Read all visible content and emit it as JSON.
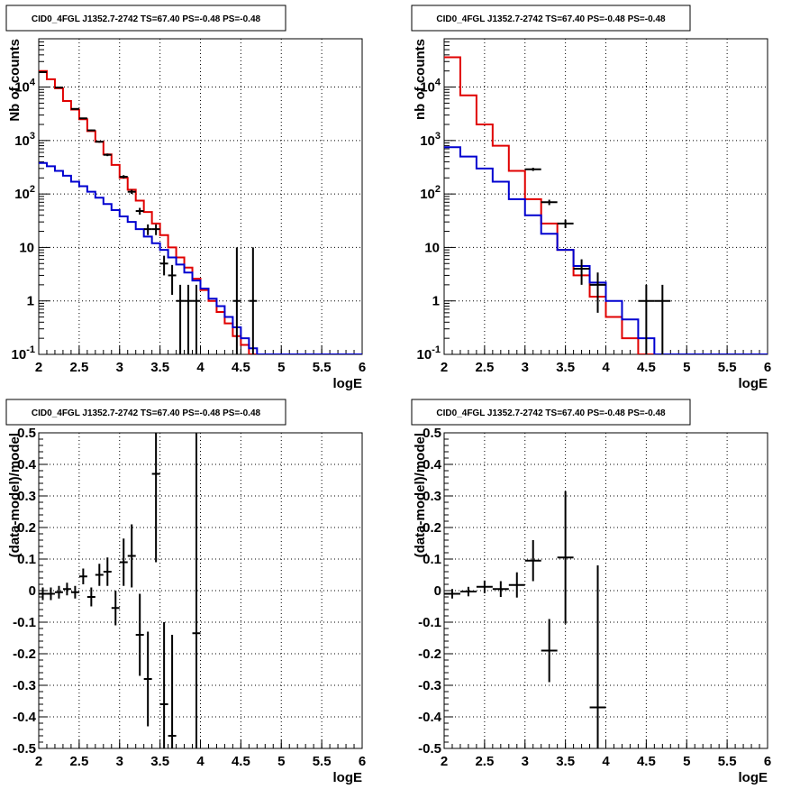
{
  "chart_data": [
    {
      "type": "line",
      "panel": "top-left",
      "title": "CID0_4FGL J1352.7-2742 TS=67.40 PS=-0.48 PS=-0.48",
      "xlabel": "logE",
      "ylabel": "Nb of counts",
      "xlim": [
        2,
        6
      ],
      "ylim": [
        0.1,
        80000
      ],
      "yscale": "log",
      "grid": true,
      "x_ticks": [
        "2",
        "2.5",
        "3",
        "3.5",
        "4",
        "4.5",
        "5",
        "5.5",
        "6"
      ],
      "y_ticks": [
        {
          "value": 0.1,
          "label": "10",
          "exp": "-1"
        },
        {
          "value": 1,
          "label": "1",
          "exp": ""
        },
        {
          "value": 10,
          "label": "10",
          "exp": ""
        },
        {
          "value": 100,
          "label": "10",
          "exp": "2"
        },
        {
          "value": 1000,
          "label": "10",
          "exp": "3"
        },
        {
          "value": 10000,
          "label": "10",
          "exp": "4"
        }
      ],
      "bin_edges": [
        2.0,
        2.1,
        2.2,
        2.3,
        2.4,
        2.5,
        2.6,
        2.7,
        2.8,
        2.9,
        3.0,
        3.1,
        3.2,
        3.3,
        3.4,
        3.5,
        3.6,
        3.7,
        3.8,
        3.9,
        4.0,
        4.1,
        4.2,
        4.3,
        4.4,
        4.5,
        4.6,
        4.7,
        4.8,
        4.9,
        5.0,
        5.1,
        5.2,
        5.3,
        5.4,
        5.5,
        5.6,
        5.7,
        5.8,
        5.9,
        6.0
      ],
      "series": [
        {
          "kind": "model-total",
          "color": "#e00000",
          "values": [
            20000,
            14000,
            9500,
            5500,
            3800,
            2500,
            1500,
            950,
            550,
            350,
            200,
            120,
            75,
            46,
            28,
            17,
            10,
            6.5,
            4.2,
            2.6,
            1.6,
            1.0,
            0.62,
            0.38,
            0.22,
            0.15,
            0.1,
            0.1,
            0.1,
            0.1,
            0.1,
            0.1,
            0.1,
            0.1,
            0.1,
            0.1,
            0.1,
            0.1,
            0.1,
            0.1
          ]
        },
        {
          "kind": "model-component",
          "color": "#0000d0",
          "values": [
            380,
            330,
            270,
            220,
            170,
            140,
            110,
            85,
            65,
            50,
            38,
            30,
            22,
            16,
            12,
            9,
            6.5,
            4.8,
            3.4,
            2.4,
            1.7,
            1.1,
            0.8,
            0.5,
            0.32,
            0.2,
            0.13,
            0.1,
            0.1,
            0.1,
            0.1,
            0.1,
            0.1,
            0.1,
            0.1,
            0.1,
            0.1,
            0.1,
            0.1,
            0.1
          ]
        },
        {
          "kind": "data",
          "color": "#000000",
          "points": [
            {
              "x": 2.05,
              "y": 19000,
              "lo": 18800,
              "hi": 19200
            },
            {
              "x": 2.25,
              "y": 9800,
              "lo": 9650,
              "hi": 9950
            },
            {
              "x": 2.45,
              "y": 3900,
              "lo": 3830,
              "hi": 3970
            },
            {
              "x": 2.55,
              "y": 2600,
              "lo": 2540,
              "hi": 2660
            },
            {
              "x": 2.65,
              "y": 1550,
              "lo": 1500,
              "hi": 1600
            },
            {
              "x": 2.75,
              "y": 950,
              "lo": 910,
              "hi": 990
            },
            {
              "x": 2.85,
              "y": 540,
              "lo": 510,
              "hi": 570
            },
            {
              "x": 3.05,
              "y": 210,
              "lo": 195,
              "hi": 225
            },
            {
              "x": 3.15,
              "y": 110,
              "lo": 100,
              "hi": 120
            },
            {
              "x": 3.25,
              "y": 48,
              "lo": 41,
              "hi": 55
            },
            {
              "x": 3.35,
              "y": 22,
              "lo": 17,
              "hi": 27
            },
            {
              "x": 3.45,
              "y": 22,
              "lo": 17,
              "hi": 27
            },
            {
              "x": 3.55,
              "y": 5,
              "lo": 3,
              "hi": 7
            },
            {
              "x": 3.65,
              "y": 3,
              "lo": 1.3,
              "hi": 4.7
            },
            {
              "x": 3.75,
              "y": 1,
              "lo": 0.1,
              "hi": 2
            },
            {
              "x": 3.85,
              "y": 1,
              "lo": 0.1,
              "hi": 2
            },
            {
              "x": 3.95,
              "y": 1,
              "lo": 0.1,
              "hi": 2
            },
            {
              "x": 4.45,
              "y": 1,
              "lo": 0.1,
              "hi": 10
            },
            {
              "x": 4.65,
              "y": 1,
              "lo": 0.1,
              "hi": 10
            }
          ]
        }
      ]
    },
    {
      "type": "line",
      "panel": "top-right",
      "title": "CID0_4FGL J1352.7-2742 TS=67.40 PS=-0.48 PS=-0.48",
      "xlabel": "logE",
      "ylabel": "nb of counts",
      "xlim": [
        2,
        6
      ],
      "ylim": [
        0.1,
        80000
      ],
      "yscale": "log",
      "grid": true,
      "x_ticks": [
        "2",
        "2.5",
        "3",
        "3.5",
        "4",
        "4.5",
        "5",
        "5.5",
        "6"
      ],
      "y_ticks": [
        {
          "value": 0.1,
          "label": "10",
          "exp": "-1"
        },
        {
          "value": 1,
          "label": "1",
          "exp": ""
        },
        {
          "value": 10,
          "label": "10",
          "exp": ""
        },
        {
          "value": 100,
          "label": "10",
          "exp": "2"
        },
        {
          "value": 1000,
          "label": "10",
          "exp": "3"
        },
        {
          "value": 10000,
          "label": "10",
          "exp": "4"
        }
      ],
      "bin_edges": [
        2.0,
        2.2,
        2.4,
        2.6,
        2.8,
        3.0,
        3.2,
        3.4,
        3.6,
        3.8,
        4.0,
        4.2,
        4.4,
        4.6,
        4.8,
        5.0,
        5.2,
        5.4,
        5.6,
        5.8,
        6.0
      ],
      "series": [
        {
          "kind": "model-total",
          "color": "#e00000",
          "values": [
            36000,
            7000,
            2000,
            800,
            270,
            80,
            28,
            9,
            3,
            1.2,
            0.5,
            0.2,
            0.1,
            0.1,
            0.1,
            0.1,
            0.1,
            0.1,
            0.1,
            0.1
          ]
        },
        {
          "kind": "model-component",
          "color": "#0000d0",
          "values": [
            750,
            500,
            300,
            170,
            80,
            40,
            18,
            9,
            4.5,
            2.2,
            1.0,
            0.45,
            0.2,
            0.1,
            0.1,
            0.1,
            0.1,
            0.1,
            0.1,
            0.1
          ]
        },
        {
          "kind": "data",
          "color": "#000000",
          "points": [
            {
              "x": 3.1,
              "y": 290,
              "lo": 270,
              "hi": 310
            },
            {
              "x": 3.3,
              "y": 70,
              "lo": 62,
              "hi": 78
            },
            {
              "x": 3.5,
              "y": 28,
              "lo": 23,
              "hi": 33
            },
            {
              "x": 3.7,
              "y": 4,
              "lo": 2,
              "hi": 6
            },
            {
              "x": 3.9,
              "y": 2,
              "lo": 0.6,
              "hi": 3.4
            },
            {
              "x": 4.5,
              "y": 1,
              "lo": 0.1,
              "hi": 2
            },
            {
              "x": 4.7,
              "y": 1,
              "lo": 0.1,
              "hi": 2
            }
          ]
        }
      ]
    },
    {
      "type": "scatter",
      "panel": "bottom-left",
      "title": "CID0_4FGL J1352.7-2742 TS=67.40 PS=-0.48 PS=-0.48",
      "xlabel": "logE",
      "ylabel": "(data-model)/model",
      "xlim": [
        2,
        6
      ],
      "ylim": [
        -0.5,
        0.5
      ],
      "grid": true,
      "x_ticks": [
        "2",
        "2.5",
        "3",
        "3.5",
        "4",
        "4.5",
        "5",
        "5.5",
        "6"
      ],
      "y_ticks": [
        "-0.5",
        "-0.4",
        "-0.3",
        "-0.2",
        "-0.1",
        "0",
        "0.1",
        "0.2",
        "0.3",
        "0.4",
        "0.5"
      ],
      "points": [
        {
          "x": 2.05,
          "y": -0.01,
          "err": 0.02
        },
        {
          "x": 2.15,
          "y": -0.01,
          "err": 0.02
        },
        {
          "x": 2.25,
          "y": -0.005,
          "err": 0.02
        },
        {
          "x": 2.35,
          "y": 0.005,
          "err": 0.02
        },
        {
          "x": 2.45,
          "y": -0.005,
          "err": 0.02
        },
        {
          "x": 2.55,
          "y": 0.045,
          "err": 0.025
        },
        {
          "x": 2.65,
          "y": -0.02,
          "err": 0.03
        },
        {
          "x": 2.75,
          "y": 0.05,
          "err": 0.035
        },
        {
          "x": 2.85,
          "y": 0.06,
          "err": 0.045
        },
        {
          "x": 2.95,
          "y": -0.055,
          "err": 0.055
        },
        {
          "x": 3.05,
          "y": 0.09,
          "err": 0.075
        },
        {
          "x": 3.15,
          "y": 0.11,
          "err": 0.1
        },
        {
          "x": 3.25,
          "y": -0.14,
          "err": 0.13
        },
        {
          "x": 3.35,
          "y": -0.28,
          "err": 0.15
        },
        {
          "x": 3.45,
          "y": 0.37,
          "err": 0.28
        },
        {
          "x": 3.55,
          "y": -0.36,
          "err": 0.26
        },
        {
          "x": 3.65,
          "y": -0.46,
          "err": 0.32
        },
        {
          "x": 3.95,
          "y": -0.135,
          "err": 0.8
        }
      ]
    },
    {
      "type": "scatter",
      "panel": "bottom-right",
      "title": "CID0_4FGL J1352.7-2742 TS=67.40 PS=-0.48 PS=-0.48",
      "xlabel": "logE",
      "ylabel": "(data-model)/model",
      "xlim": [
        2,
        6
      ],
      "ylim": [
        -0.5,
        0.5
      ],
      "grid": true,
      "x_ticks": [
        "2",
        "2.5",
        "3",
        "3.5",
        "4",
        "4.5",
        "5",
        "5.5",
        "6"
      ],
      "y_ticks": [
        "-0.5",
        "-0.4",
        "-0.3",
        "-0.2",
        "-0.1",
        "0",
        "0.1",
        "0.2",
        "0.3",
        "0.4",
        "0.5"
      ],
      "points": [
        {
          "x": 2.1,
          "y": -0.01,
          "err": 0.015
        },
        {
          "x": 2.3,
          "y": -0.003,
          "err": 0.015
        },
        {
          "x": 2.5,
          "y": 0.012,
          "err": 0.02
        },
        {
          "x": 2.7,
          "y": 0.005,
          "err": 0.025
        },
        {
          "x": 2.9,
          "y": 0.018,
          "err": 0.04
        },
        {
          "x": 3.1,
          "y": 0.095,
          "err": 0.065
        },
        {
          "x": 3.3,
          "y": -0.19,
          "err": 0.1
        },
        {
          "x": 3.5,
          "y": 0.105,
          "err": 0.21
        },
        {
          "x": 3.9,
          "y": -0.37,
          "err": 0.45
        }
      ]
    }
  ]
}
